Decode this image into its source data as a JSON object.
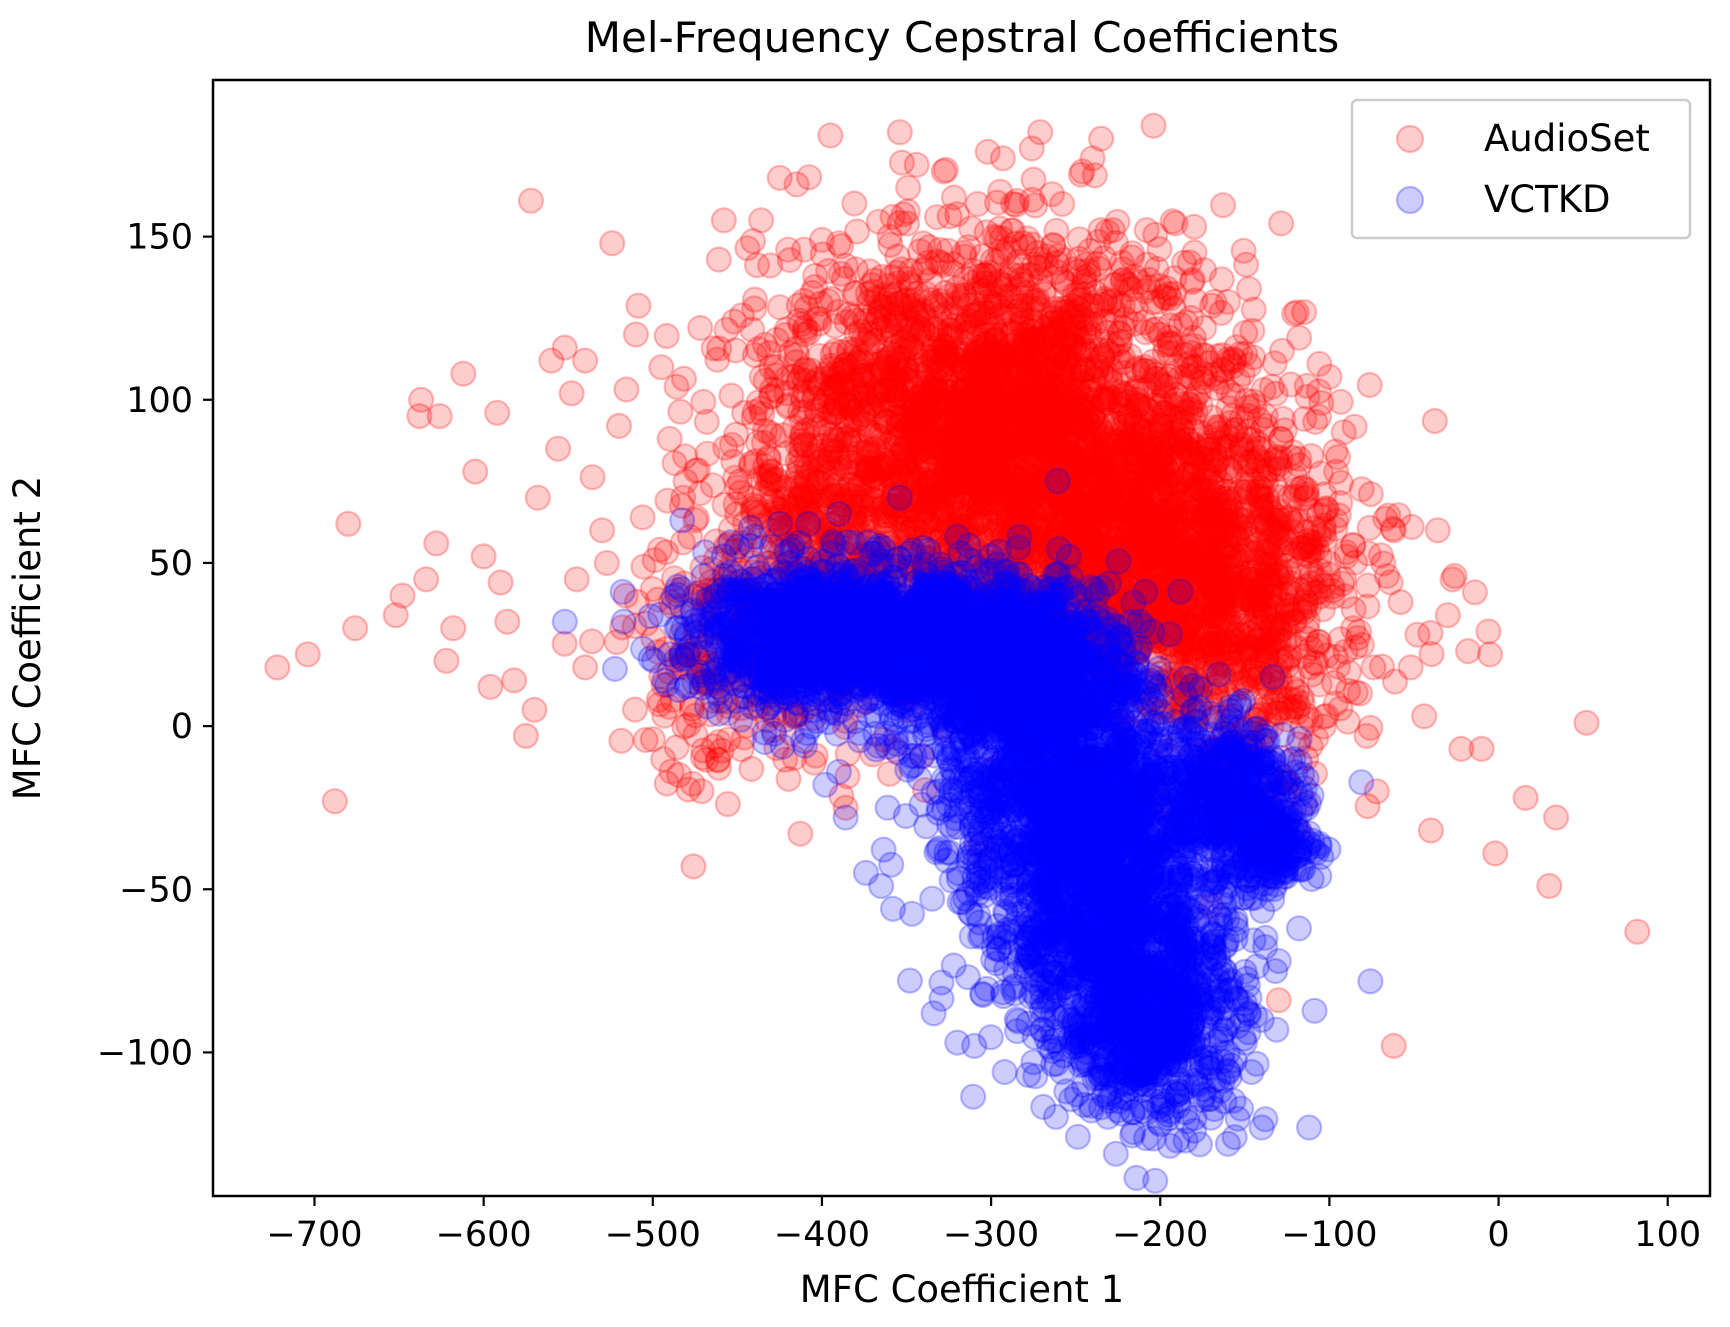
{
  "chart_data": {
    "type": "scatter",
    "title": "Mel-Frequency Cepstral Coefficients",
    "xlabel": "MFC Coefficient 1",
    "ylabel": "MFC Coefficient 2",
    "xlim": [
      -760,
      125
    ],
    "ylim": [
      -144,
      198
    ],
    "x_ticks": [
      -700,
      -600,
      -500,
      -400,
      -300,
      -200,
      -100,
      0,
      100
    ],
    "x_tick_labels": [
      "−700",
      "−600",
      "−500",
      "−400",
      "−300",
      "−200",
      "−100",
      "0",
      "100"
    ],
    "y_ticks": [
      -100,
      -50,
      0,
      50,
      100,
      150
    ],
    "y_tick_labels": [
      "−100",
      "−50",
      "0",
      "50",
      "100",
      "150"
    ],
    "grid": false,
    "legend_position": "top-right",
    "marker": "circle",
    "marker_alpha": 0.2,
    "series": [
      {
        "name": "AudioSet",
        "color": "#ff0000",
        "points": [
          [
            -722,
            18
          ],
          [
            -704,
            22
          ],
          [
            -688,
            -23
          ],
          [
            -680,
            62
          ],
          [
            -676,
            30
          ],
          [
            -652,
            34
          ],
          [
            -648,
            40
          ],
          [
            -638,
            95
          ],
          [
            -637,
            100
          ],
          [
            -634,
            45
          ],
          [
            -628,
            56
          ],
          [
            -626,
            95
          ],
          [
            -622,
            20
          ],
          [
            -618,
            30
          ],
          [
            -612,
            108
          ],
          [
            -605,
            78
          ],
          [
            -600,
            52
          ],
          [
            -596,
            12
          ],
          [
            -592,
            96
          ],
          [
            -590,
            44
          ],
          [
            -586,
            32
          ],
          [
            -582,
            14
          ],
          [
            -575,
            -3
          ],
          [
            -572,
            161
          ],
          [
            -568,
            70
          ],
          [
            -560,
            112
          ],
          [
            -556,
            85
          ],
          [
            -552,
            116
          ],
          [
            -548,
            102
          ],
          [
            -545,
            45
          ],
          [
            -540,
            112
          ],
          [
            -536,
            26
          ],
          [
            -530,
            60
          ],
          [
            -524,
            148
          ],
          [
            -520,
            92
          ],
          [
            -516,
            40
          ],
          [
            -510,
            120
          ],
          [
            -506,
            64
          ],
          [
            -500,
            -4
          ],
          [
            -495,
            110
          ],
          [
            -490,
            88
          ],
          [
            -486,
            104
          ],
          [
            -482,
            70
          ],
          [
            -478,
            58
          ],
          [
            -476,
            -43
          ],
          [
            -472,
            122
          ],
          [
            -466,
            30
          ],
          [
            -461,
            143
          ],
          [
            -458,
            155
          ],
          [
            -452,
            124
          ],
          [
            -446,
            96
          ],
          [
            -440,
            128
          ],
          [
            -436,
            155
          ],
          [
            -430,
            110
          ],
          [
            -425,
            168
          ],
          [
            -420,
            146
          ],
          [
            -415,
            166
          ],
          [
            -410,
            120
          ],
          [
            -404,
            138
          ],
          [
            -400,
            149
          ],
          [
            -395,
            181
          ],
          [
            -390,
            148
          ],
          [
            -386,
            -25
          ],
          [
            -380,
            140
          ],
          [
            -372,
            130
          ],
          [
            -366,
            110
          ],
          [
            -360,
            150
          ],
          [
            -354,
            182
          ],
          [
            -349,
            165
          ],
          [
            -344,
            172
          ],
          [
            -338,
            120
          ],
          [
            -332,
            156
          ],
          [
            -328,
            170
          ],
          [
            -322,
            162
          ],
          [
            -316,
            145
          ],
          [
            -308,
            160
          ],
          [
            -302,
            176
          ],
          [
            -298,
            150
          ],
          [
            -293,
            174
          ],
          [
            -287,
            160
          ],
          [
            -281,
            148
          ],
          [
            -276,
            177
          ],
          [
            -271,
            182
          ],
          [
            -264,
            163
          ],
          [
            -258,
            160
          ],
          [
            -251,
            140
          ],
          [
            -246,
            170
          ],
          [
            -240,
            174
          ],
          [
            -235,
            180
          ],
          [
            -228,
            152
          ],
          [
            -222,
            140
          ],
          [
            -216,
            130
          ],
          [
            -208,
            152
          ],
          [
            -204,
            184
          ],
          [
            -200,
            120
          ],
          [
            -192,
            128
          ],
          [
            -186,
            142
          ],
          [
            -180,
            153
          ],
          [
            -174,
            122
          ],
          [
            -168,
            130
          ],
          [
            -160,
            130
          ],
          [
            -154,
            106
          ],
          [
            -148,
            88
          ],
          [
            -140,
            70
          ],
          [
            -134,
            104
          ],
          [
            -128,
            115
          ],
          [
            -124,
            64
          ],
          [
            -118,
            80
          ],
          [
            -112,
            52
          ],
          [
            -106,
            111
          ],
          [
            -100,
            107
          ],
          [
            -96,
            78
          ],
          [
            -90,
            52
          ],
          [
            -86,
            30
          ],
          [
            -82,
            10
          ],
          [
            -78,
            -3
          ],
          [
            -74,
            18
          ],
          [
            -72,
            -20
          ],
          [
            -66,
            46
          ],
          [
            -62,
            60
          ],
          [
            -58,
            38
          ],
          [
            -52,
            18
          ],
          [
            -48,
            28
          ],
          [
            -44,
            3
          ],
          [
            -40,
            -32
          ],
          [
            -36,
            60
          ],
          [
            -30,
            34
          ],
          [
            -26,
            46
          ],
          [
            -22,
            -7
          ],
          [
            -18,
            23
          ],
          [
            -14,
            41
          ],
          [
            -10,
            -7
          ],
          [
            -6,
            29
          ],
          [
            -2,
            -39
          ],
          [
            16,
            -22
          ],
          [
            30,
            -49
          ],
          [
            34,
            -28
          ],
          [
            52,
            1
          ],
          [
            82,
            -63
          ],
          [
            -62,
            -98
          ],
          [
            -130,
            -84
          ],
          [
            -170,
            -55
          ],
          [
            -205,
            82
          ],
          [
            -260,
            98
          ],
          [
            -320,
            88
          ],
          [
            -380,
            70
          ],
          [
            -430,
            60
          ],
          [
            -470,
            40
          ],
          [
            -500,
            42
          ],
          [
            -540,
            18
          ],
          [
            -570,
            5
          ]
        ],
        "clusters": [
          {
            "cx": -265,
            "cy": 72,
            "sx": 72,
            "sy": 27,
            "n": 2300
          },
          {
            "cx": -330,
            "cy": 100,
            "sx": 55,
            "sy": 22,
            "n": 900
          },
          {
            "cx": -185,
            "cy": 42,
            "sx": 42,
            "sy": 22,
            "n": 800
          },
          {
            "cx": -400,
            "cy": 50,
            "sx": 38,
            "sy": 25,
            "n": 380
          },
          {
            "cx": -265,
            "cy": 128,
            "sx": 55,
            "sy": 15,
            "n": 280
          },
          {
            "cx": -140,
            "cy": 20,
            "sx": 28,
            "sy": 25,
            "n": 260
          },
          {
            "cx": -460,
            "cy": 20,
            "sx": 30,
            "sy": 20,
            "n": 170
          }
        ]
      },
      {
        "name": "VCTKD",
        "color": "#0000ff",
        "points": [
          [
            -552,
            32
          ],
          [
            -480,
            28
          ],
          [
            -470,
            46
          ],
          [
            -458,
            52
          ],
          [
            -450,
            55
          ],
          [
            -440,
            58
          ],
          [
            -425,
            62
          ],
          [
            -408,
            62
          ],
          [
            -390,
            65
          ],
          [
            -354,
            70
          ],
          [
            -320,
            58
          ],
          [
            -300,
            52
          ],
          [
            -260,
            40
          ],
          [
            -230,
            22
          ],
          [
            -200,
            12
          ],
          [
            -180,
            5
          ],
          [
            -160,
            0
          ],
          [
            -150,
            -5
          ],
          [
            -130,
            -20
          ],
          [
            -120,
            -30
          ],
          [
            -112,
            -36
          ],
          [
            -106,
            -46
          ],
          [
            -118,
            -62
          ],
          [
            -130,
            -72
          ],
          [
            -140,
            -90
          ],
          [
            -150,
            -97
          ],
          [
            -158,
            -104
          ],
          [
            -162,
            -115
          ],
          [
            -170,
            -120
          ],
          [
            -180,
            -124
          ],
          [
            -190,
            -127
          ],
          [
            -200,
            -122
          ],
          [
            -210,
            -118
          ],
          [
            -220,
            -114
          ],
          [
            -232,
            -112
          ],
          [
            -245,
            -110
          ],
          [
            -258,
            -106
          ],
          [
            -275,
            -103
          ],
          [
            -292,
            -106
          ],
          [
            -310,
            -98
          ],
          [
            -320,
            -97
          ],
          [
            -334,
            -88
          ],
          [
            -348,
            -78
          ],
          [
            -358,
            -56
          ],
          [
            -365,
            -49
          ],
          [
            -374,
            -45
          ],
          [
            -386,
            -28
          ],
          [
            -398,
            -18
          ],
          [
            -410,
            -6
          ],
          [
            -434,
            -2
          ],
          [
            -448,
            2
          ],
          [
            -468,
            6
          ],
          [
            -480,
            12
          ],
          [
            -490,
            22
          ],
          [
            -160,
            -128
          ],
          [
            -185,
            -127
          ],
          [
            -140,
            -123
          ],
          [
            -112,
            -123
          ],
          [
            -150,
            -85
          ],
          [
            -180,
            -60
          ],
          [
            -390,
            -14
          ]
        ],
        "clusters": [
          {
            "cx": -360,
            "cy": 28,
            "sx": 52,
            "sy": 11,
            "n": 1300
          },
          {
            "cx": -285,
            "cy": 15,
            "sx": 38,
            "sy": 13,
            "n": 900
          },
          {
            "cx": -255,
            "cy": -22,
            "sx": 38,
            "sy": 18,
            "n": 1100
          },
          {
            "cx": -230,
            "cy": -60,
            "sx": 36,
            "sy": 20,
            "n": 1000
          },
          {
            "cx": -205,
            "cy": -92,
            "sx": 27,
            "sy": 14,
            "n": 620
          },
          {
            "cx": -160,
            "cy": -18,
            "sx": 22,
            "sy": 10,
            "n": 320
          },
          {
            "cx": -135,
            "cy": -36,
            "sx": 14,
            "sy": 7,
            "n": 220
          },
          {
            "cx": -425,
            "cy": 28,
            "sx": 26,
            "sy": 12,
            "n": 320
          }
        ]
      }
    ]
  }
}
